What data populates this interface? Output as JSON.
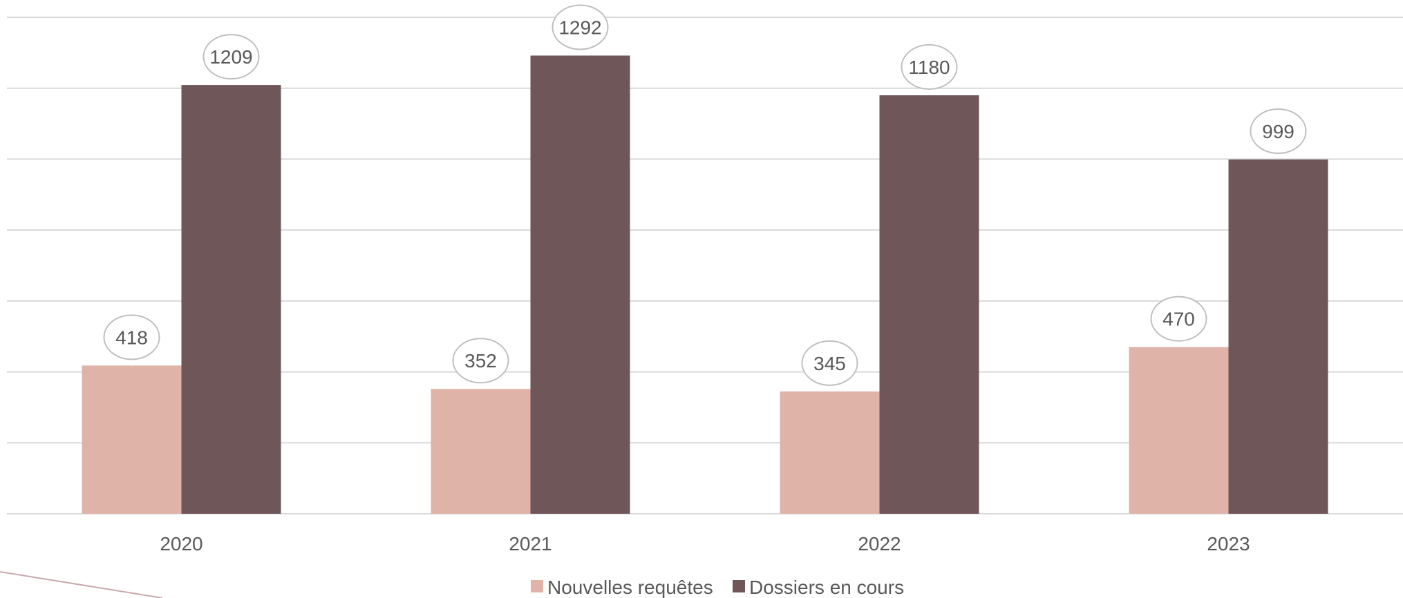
{
  "chart_data": {
    "type": "bar",
    "categories": [
      "2020",
      "2021",
      "2022",
      "2023"
    ],
    "series": [
      {
        "name": "Nouvelles requêtes",
        "values": [
          418,
          352,
          345,
          470
        ],
        "color": "#e0b3a8"
      },
      {
        "name": "Dossiers en cours",
        "values": [
          1209,
          1292,
          1180,
          999
        ],
        "color": "#6e5659"
      }
    ],
    "title": "",
    "xlabel": "",
    "ylabel": "",
    "ylim": [
      0,
      1400
    ],
    "grid": true,
    "legend_position": "bottom",
    "data_labels": true
  }
}
